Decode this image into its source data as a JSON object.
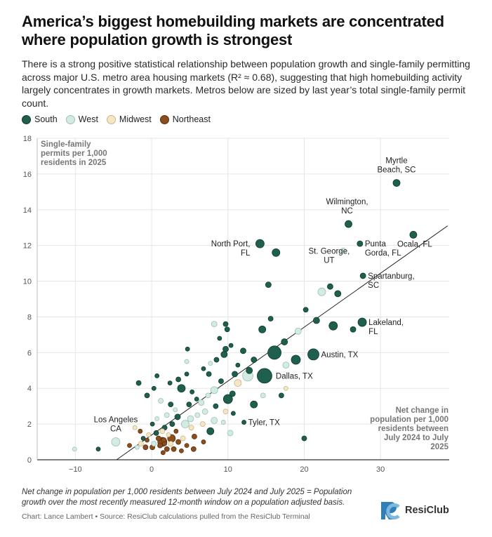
{
  "title": "America’s biggest homebuilding markets are concentrated where population growth is strongest",
  "subtitle": "There is a strong positive statistical relationship between population growth and single-family permitting across major U.S. metro area housing markets (R² ≈ 0.68), suggesting that high homebuilding activity largely concentrates in growth markets. Metros below are sized by last year’s total single-family permit count.",
  "legend": [
    {
      "label": "South",
      "color": "#1e5f4e"
    },
    {
      "label": "West",
      "color": "#d2ece4"
    },
    {
      "label": "Midwest",
      "color": "#f5e6c6"
    },
    {
      "label": "Northeast",
      "color": "#8a4e1e"
    }
  ],
  "footnote": "Net change in population per 1,000 residents between July 2024 and July 2025 = Population growth over the most recently measured 12-month window on a population adjusted basis.",
  "credits": "Chart: Lance Lambert • Source: ResiClub calculations pulled from the ResiClub Terminal",
  "brand": {
    "name": "ResiClub"
  },
  "chart_data": {
    "type": "scatter",
    "xlabel": "Net change in population per 1,000 residents between July 2024 to July 2025",
    "ylabel": "Single-family permits per 1,000 residents in 2025",
    "xlim": [
      -15,
      39
    ],
    "ylim": [
      0,
      18
    ],
    "x_ticks": [
      "−10",
      "0",
      "10",
      "20",
      "30"
    ],
    "x_tick_values": [
      -10,
      0,
      10,
      20,
      30
    ],
    "y_ticks": [
      "0",
      "2",
      "4",
      "6",
      "8",
      "10",
      "12",
      "14",
      "16",
      "18"
    ],
    "y_tick_values": [
      0,
      2,
      4,
      6,
      8,
      10,
      12,
      14,
      16,
      18
    ],
    "trendline": {
      "x1": -4.6,
      "y1": 0,
      "x2": 38.8,
      "y2": 13.1
    },
    "grid": true,
    "points": [
      {
        "label": "Myrtle Beach, SC",
        "x": 32.1,
        "y": 15.5,
        "region": "South",
        "size": 9
      },
      {
        "label": "Wilmington, NC",
        "x": 25.8,
        "y": 13.2,
        "region": "South",
        "size": 9
      },
      {
        "label": "Ocala, FL",
        "x": 34.3,
        "y": 12.6,
        "region": "South",
        "size": 9
      },
      {
        "label": "Punta Gorda, FL",
        "x": 27.3,
        "y": 12.1,
        "region": "South",
        "size": 7
      },
      {
        "label": "St. George, UT",
        "x": 25.1,
        "y": 11.7,
        "region": "West",
        "size": 7
      },
      {
        "label": "North Port, FL",
        "x": 14.2,
        "y": 12.1,
        "region": "South",
        "size": 11
      },
      {
        "x": 16.3,
        "y": 11.6,
        "region": "South",
        "size": 10
      },
      {
        "label": "Spartanburg, SC",
        "x": 27.7,
        "y": 10.3,
        "region": "South",
        "size": 7
      },
      {
        "label": "Lakeland, FL",
        "x": 27.6,
        "y": 7.7,
        "region": "South",
        "size": 11
      },
      {
        "label": "Austin, TX",
        "x": 21.2,
        "y": 5.9,
        "region": "South",
        "size": 15
      },
      {
        "label": "Dallas, TX",
        "x": 14.8,
        "y": 4.7,
        "region": "South",
        "size": 20
      },
      {
        "label": "Tyler, TX",
        "x": 12.1,
        "y": 2.1,
        "region": "South",
        "size": 5
      },
      {
        "label": "Los Angeles, CA",
        "x": -4.7,
        "y": 1.0,
        "region": "West",
        "size": 11
      },
      {
        "x": -10.1,
        "y": 0.6,
        "region": "West",
        "size": 5
      },
      {
        "x": -7.0,
        "y": 0.6,
        "region": "South",
        "size": 5
      },
      {
        "x": 20.0,
        "y": 1.2,
        "region": "South",
        "size": 6
      },
      {
        "x": 15.3,
        "y": 9.8,
        "region": "South",
        "size": 7
      },
      {
        "x": 22.3,
        "y": 9.4,
        "region": "West",
        "size": 10
      },
      {
        "x": 23.4,
        "y": 9.7,
        "region": "South",
        "size": 7
      },
      {
        "x": 24.4,
        "y": 9.3,
        "region": "South",
        "size": 8
      },
      {
        "x": 20.2,
        "y": 8.4,
        "region": "South",
        "size": 6
      },
      {
        "x": 21.6,
        "y": 7.8,
        "region": "South",
        "size": 8
      },
      {
        "x": 23.8,
        "y": 7.5,
        "region": "South",
        "size": 11
      },
      {
        "x": 26.4,
        "y": 7.3,
        "region": "South",
        "size": 7
      },
      {
        "x": 19.2,
        "y": 7.2,
        "region": "West",
        "size": 8
      },
      {
        "x": 17.4,
        "y": 6.6,
        "region": "South",
        "size": 8
      },
      {
        "x": 16.1,
        "y": 6.0,
        "region": "South",
        "size": 18
      },
      {
        "x": 18.9,
        "y": 5.6,
        "region": "South",
        "size": 12
      },
      {
        "x": 17.6,
        "y": 5.3,
        "region": "West",
        "size": 8
      },
      {
        "x": 14.5,
        "y": 7.3,
        "region": "South",
        "size": 9
      },
      {
        "x": 15.6,
        "y": 7.9,
        "region": "South",
        "size": 6
      },
      {
        "x": 9.9,
        "y": 7.3,
        "region": "South",
        "size": 6
      },
      {
        "x": 8.2,
        "y": 7.6,
        "region": "West",
        "size": 7
      },
      {
        "x": 9.7,
        "y": 7.6,
        "region": "South",
        "size": 6
      },
      {
        "x": 8.9,
        "y": 6.8,
        "region": "South",
        "size": 5
      },
      {
        "x": 10.4,
        "y": 6.4,
        "region": "South",
        "size": 5
      },
      {
        "x": 9.7,
        "y": 6.2,
        "region": "South",
        "size": 7
      },
      {
        "x": 9.5,
        "y": 5.9,
        "region": "South",
        "size": 8
      },
      {
        "x": 12.0,
        "y": 6.1,
        "region": "South",
        "size": 7
      },
      {
        "x": 13.4,
        "y": 5.6,
        "region": "South",
        "size": 7
      },
      {
        "x": 11.3,
        "y": 5.3,
        "region": "South",
        "size": 5
      },
      {
        "x": 12.8,
        "y": 5.0,
        "region": "South",
        "size": 8
      },
      {
        "x": 10.9,
        "y": 4.8,
        "region": "South",
        "size": 7
      },
      {
        "x": 12.6,
        "y": 4.7,
        "region": "West",
        "size": 14
      },
      {
        "x": 11.3,
        "y": 4.3,
        "region": "Midwest",
        "size": 9
      },
      {
        "x": 10.6,
        "y": 3.7,
        "region": "South",
        "size": 7
      },
      {
        "x": 10.0,
        "y": 3.4,
        "region": "South",
        "size": 12
      },
      {
        "x": 9.1,
        "y": 4.4,
        "region": "South",
        "size": 6
      },
      {
        "x": 8.2,
        "y": 3.9,
        "region": "West",
        "size": 9
      },
      {
        "x": 7.5,
        "y": 4.8,
        "region": "South",
        "size": 6
      },
      {
        "x": 7.7,
        "y": 5.4,
        "region": "West",
        "size": 5
      },
      {
        "x": 8.5,
        "y": 5.6,
        "region": "South",
        "size": 6
      },
      {
        "x": 6.8,
        "y": 5.1,
        "region": "South",
        "size": 5
      },
      {
        "x": 4.7,
        "y": 6.2,
        "region": "South",
        "size": 5
      },
      {
        "x": 4.6,
        "y": 5.5,
        "region": "West",
        "size": 5
      },
      {
        "x": 3.5,
        "y": 4.5,
        "region": "South",
        "size": 6
      },
      {
        "x": 2.4,
        "y": 4.3,
        "region": "South",
        "size": 5
      },
      {
        "x": 3.9,
        "y": 4.0,
        "region": "South",
        "size": 10
      },
      {
        "x": 4.6,
        "y": 4.8,
        "region": "South",
        "size": 5
      },
      {
        "x": 5.3,
        "y": 3.8,
        "region": "South",
        "size": 5
      },
      {
        "x": 0.3,
        "y": 4.0,
        "region": "South",
        "size": 5
      },
      {
        "x": -1.7,
        "y": 4.3,
        "region": "South",
        "size": 6
      },
      {
        "x": 0.7,
        "y": 4.7,
        "region": "South",
        "size": 5
      },
      {
        "x": -0.6,
        "y": 3.6,
        "region": "South",
        "size": 6
      },
      {
        "x": 1.2,
        "y": 3.3,
        "region": "West",
        "size": 6
      },
      {
        "x": 2.5,
        "y": 3.1,
        "region": "South",
        "size": 6
      },
      {
        "x": 3.1,
        "y": 2.8,
        "region": "West",
        "size": 5
      },
      {
        "x": 4.9,
        "y": 3.1,
        "region": "South",
        "size": 6
      },
      {
        "x": 5.9,
        "y": 3.4,
        "region": "South",
        "size": 5
      },
      {
        "x": 6.5,
        "y": 3.2,
        "region": "West",
        "size": 7
      },
      {
        "x": 7.4,
        "y": 3.6,
        "region": "West",
        "size": 6
      },
      {
        "x": 8.4,
        "y": 3.0,
        "region": "South",
        "size": 6
      },
      {
        "x": 7.0,
        "y": 2.7,
        "region": "West",
        "size": 7
      },
      {
        "x": 9.7,
        "y": 2.7,
        "region": "Midwest",
        "size": 6
      },
      {
        "x": 8.2,
        "y": 2.2,
        "region": "West",
        "size": 8
      },
      {
        "x": 7.7,
        "y": 1.6,
        "region": "South",
        "size": 9
      },
      {
        "x": 9.4,
        "y": 2.1,
        "region": "West",
        "size": 5
      },
      {
        "x": 10.7,
        "y": 2.6,
        "region": "South",
        "size": 5
      },
      {
        "x": 10.3,
        "y": 1.5,
        "region": "West",
        "size": 7
      },
      {
        "x": 13.4,
        "y": 3.1,
        "region": "South",
        "size": 9
      },
      {
        "x": 14.6,
        "y": 3.6,
        "region": "West",
        "size": 6
      },
      {
        "x": 17.0,
        "y": 3.6,
        "region": "South",
        "size": 6
      },
      {
        "x": 17.6,
        "y": 4.0,
        "region": "Midwest",
        "size": 5
      },
      {
        "x": 6.7,
        "y": 2.0,
        "region": "Midwest",
        "size": 6
      },
      {
        "x": 6.0,
        "y": 2.5,
        "region": "West",
        "size": 6
      },
      {
        "x": 5.1,
        "y": 2.3,
        "region": "West",
        "size": 8
      },
      {
        "x": 4.4,
        "y": 2.0,
        "region": "West",
        "size": 10
      },
      {
        "x": 3.4,
        "y": 2.4,
        "region": "South",
        "size": 7
      },
      {
        "x": 2.7,
        "y": 2.0,
        "region": "South",
        "size": 6
      },
      {
        "x": 2.0,
        "y": 2.5,
        "region": "West",
        "size": 6
      },
      {
        "x": 1.7,
        "y": 1.8,
        "region": "South",
        "size": 6
      },
      {
        "x": 0.7,
        "y": 2.3,
        "region": "West",
        "size": 5
      },
      {
        "x": 0.1,
        "y": 2.0,
        "region": "South",
        "size": 5
      },
      {
        "x": 0.6,
        "y": 1.5,
        "region": "South",
        "size": 6
      },
      {
        "x": -0.4,
        "y": 1.4,
        "region": "Midwest",
        "size": 5
      },
      {
        "x": -1.1,
        "y": 1.2,
        "region": "South",
        "size": 5
      },
      {
        "x": -1.5,
        "y": 1.6,
        "region": "Northeast",
        "size": 5
      },
      {
        "x": -2.2,
        "y": 1.8,
        "region": "Midwest",
        "size": 5
      },
      {
        "x": -1.4,
        "y": 0.9,
        "region": "Midwest",
        "size": 6
      },
      {
        "x": -1.9,
        "y": 0.7,
        "region": "West",
        "size": 5
      },
      {
        "x": -2.9,
        "y": 0.8,
        "region": "Northeast",
        "size": 5
      },
      {
        "x": -0.8,
        "y": 0.7,
        "region": "Northeast",
        "size": 6
      },
      {
        "x": 0.1,
        "y": 0.7,
        "region": "Northeast",
        "size": 6
      },
      {
        "x": 0.3,
        "y": 0.9,
        "region": "West",
        "size": 6
      },
      {
        "x": 1.1,
        "y": 0.8,
        "region": "Northeast",
        "size": 6
      },
      {
        "x": 1.6,
        "y": 1.1,
        "region": "Northeast",
        "size": 6
      },
      {
        "x": 2.0,
        "y": 0.6,
        "region": "Northeast",
        "size": 6
      },
      {
        "x": 2.5,
        "y": 0.9,
        "region": "Midwest",
        "size": 6
      },
      {
        "x": 2.6,
        "y": 1.2,
        "region": "Northeast",
        "size": 10
      },
      {
        "x": 2.9,
        "y": 0.6,
        "region": "Northeast",
        "size": 6
      },
      {
        "x": 3.5,
        "y": 1.0,
        "region": "Northeast",
        "size": 6
      },
      {
        "x": 4.1,
        "y": 1.2,
        "region": "Midwest",
        "size": 6
      },
      {
        "x": 4.6,
        "y": 0.8,
        "region": "Northeast",
        "size": 5
      },
      {
        "x": 5.6,
        "y": 1.3,
        "region": "Northeast",
        "size": 6
      },
      {
        "x": 6.8,
        "y": 1.0,
        "region": "Northeast",
        "size": 5
      },
      {
        "x": 1.4,
        "y": 1.6,
        "region": "Midwest",
        "size": 6
      },
      {
        "x": 3.2,
        "y": 1.6,
        "region": "Northeast",
        "size": 5
      },
      {
        "x": 5.2,
        "y": 1.8,
        "region": "Midwest",
        "size": 6
      },
      {
        "x": 1.5,
        "y": 0.4,
        "region": "Northeast",
        "size": 5
      },
      {
        "x": 3.9,
        "y": 0.5,
        "region": "Northeast",
        "size": 5
      },
      {
        "x": 5.5,
        "y": 0.6,
        "region": "Northeast",
        "size": 6
      },
      {
        "x": 0.9,
        "y": 1.2,
        "region": "Northeast",
        "size": 6
      },
      {
        "x": 1.7,
        "y": 0.9,
        "region": "Northeast",
        "size": 5
      },
      {
        "x": -0.6,
        "y": 1.1,
        "region": "Northeast",
        "size": 5
      },
      {
        "x": 2.2,
        "y": 1.4,
        "region": "Midwest",
        "size": 5
      },
      {
        "x": 1.4,
        "y": 1.0,
        "region": "Northeast",
        "size": 12
      }
    ]
  }
}
